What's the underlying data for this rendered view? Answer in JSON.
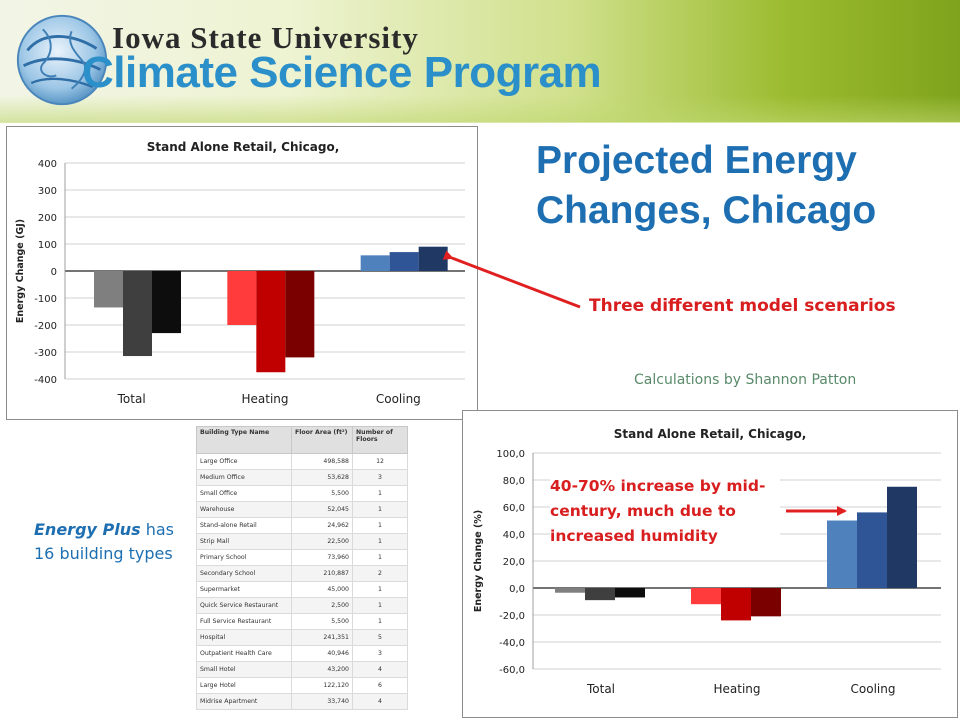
{
  "header": {
    "university_name": "Iowa State University",
    "program_name": "Climate Science Program"
  },
  "title": "Projected Energy Changes, Chicago",
  "annotations": {
    "model_scenarios": "Three different model scenarios",
    "credit": "Calculations by Shannon Patton",
    "increase_note": "40-70% increase by mid-century, much due to increased humidity"
  },
  "note": {
    "prefix": "Energy Plus",
    "suffix": " has 16 building types"
  },
  "table": {
    "headers": [
      "Building Type Name",
      "Floor Area (ft²)",
      "Number of Floors"
    ],
    "rows": [
      [
        "Large Office",
        "498,588",
        "12"
      ],
      [
        "Medium Office",
        "53,628",
        "3"
      ],
      [
        "Small Office",
        "5,500",
        "1"
      ],
      [
        "Warehouse",
        "52,045",
        "1"
      ],
      [
        "Stand-alone Retail",
        "24,962",
        "1"
      ],
      [
        "Strip Mall",
        "22,500",
        "1"
      ],
      [
        "Primary School",
        "73,960",
        "1"
      ],
      [
        "Secondary School",
        "210,887",
        "2"
      ],
      [
        "Supermarket",
        "45,000",
        "1"
      ],
      [
        "Quick Service Restaurant",
        "2,500",
        "1"
      ],
      [
        "Full Service Restaurant",
        "5,500",
        "1"
      ],
      [
        "Hospital",
        "241,351",
        "5"
      ],
      [
        "Outpatient Health Care",
        "40,946",
        "3"
      ],
      [
        "Small Hotel",
        "43,200",
        "4"
      ],
      [
        "Large Hotel",
        "122,120",
        "6"
      ],
      [
        "Midrise Apartment",
        "33,740",
        "4"
      ]
    ]
  },
  "chart_data": [
    {
      "type": "bar",
      "title": "Stand Alone Retail, Chicago,",
      "xlabel": "",
      "ylabel": "Energy Change (GJ)",
      "categories": [
        "Total",
        "Heating",
        "Cooling"
      ],
      "series_values": [
        [
          -135,
          -315,
          -230
        ],
        [
          -200,
          -375,
          -320
        ],
        [
          58,
          70,
          90
        ]
      ],
      "ylim": [
        -400,
        400
      ],
      "yticks": [
        400,
        300,
        200,
        100,
        0,
        -100,
        -200,
        -300,
        -400
      ],
      "ytick_labels": [
        "400",
        "300",
        "200",
        "100",
        "0",
        "-100",
        "-200",
        "-300",
        "-400"
      ],
      "colors": [
        [
          "#7f7f7f",
          "#3f3f3f",
          "#0d0d0d"
        ],
        [
          "#ff3b3b",
          "#c00000",
          "#7a0000"
        ],
        [
          "#4f81bd",
          "#2f5597",
          "#1f3864"
        ]
      ],
      "legend": "none"
    },
    {
      "type": "bar",
      "title": "Stand Alone Retail, Chicago,",
      "xlabel": "",
      "ylabel": "Energy Change (%)",
      "categories": [
        "Total",
        "Heating",
        "Cooling"
      ],
      "series_values": [
        [
          -3.5,
          -9,
          -7
        ],
        [
          -12,
          -24,
          -21
        ],
        [
          50,
          56,
          75
        ]
      ],
      "ylim": [
        -60,
        100
      ],
      "yticks": [
        100,
        80,
        60,
        40,
        20,
        0,
        -20,
        -40,
        -60
      ],
      "ytick_labels": [
        "100,0",
        "80,0",
        "60,0",
        "40,0",
        "20,0",
        "0,0",
        "-20,0",
        "-40,0",
        "-60,0"
      ],
      "colors": [
        [
          "#7f7f7f",
          "#3f3f3f",
          "#0d0d0d"
        ],
        [
          "#ff3b3b",
          "#c00000",
          "#7a0000"
        ],
        [
          "#4f81bd",
          "#2f5597",
          "#1f3864"
        ]
      ],
      "legend": "none"
    }
  ]
}
